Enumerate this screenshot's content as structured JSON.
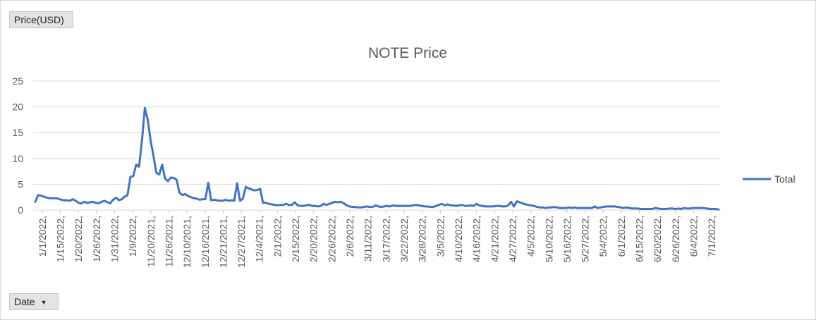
{
  "buttons": {
    "value_field": "Price(USD)",
    "axis_field": "Date",
    "axis_field_icon": "dropdown-arrow-icon"
  },
  "chart_data": {
    "type": "line",
    "title": "NOTE Price",
    "xlabel": "",
    "ylabel": "",
    "ylim": [
      0,
      25
    ],
    "yticks": [
      "0",
      "5",
      "10",
      "15",
      "20",
      "25"
    ],
    "grid": true,
    "legend_position": "right",
    "color": "#4472c4",
    "x_tick_labels": [
      "1/1/2022,",
      "1/15/2022,",
      "1/20/2022,",
      "1/26/2022,",
      "1/31/2022,",
      "1/9/2022,",
      "11/20/2021,",
      "11/26/2021,",
      "12/10/2021,",
      "12/16/2021,",
      "12/21/2021,",
      "12/27/2021,",
      "12/4/2021,",
      "2/1/2022,",
      "2/15/2022,",
      "2/20/2022,",
      "2/26/2022,",
      "2/6/2022,",
      "3/11/2022,",
      "3/17/2022,",
      "3/22/2022,",
      "3/28/2022,",
      "3/5/2022,",
      "4/10/2022,",
      "4/16/2022,",
      "4/21/2022,",
      "4/27/2022,",
      "4/5/2022,",
      "5/10/2022,",
      "5/16/2022,",
      "5/27/2022,",
      "5/4/2022,",
      "6/1/2022,",
      "6/15/2022,",
      "6/20/2022,",
      "6/26/2022,",
      "6/4/2022,",
      "7/1/2022,"
    ],
    "series": [
      {
        "name": "Total",
        "values": [
          1.6,
          2.9,
          2.8,
          2.6,
          2.4,
          2.3,
          2.3,
          2.3,
          2.2,
          2.0,
          1.9,
          1.9,
          1.8,
          2.1,
          1.8,
          1.4,
          1.3,
          1.6,
          1.4,
          1.5,
          1.6,
          1.4,
          1.3,
          1.6,
          1.8,
          1.5,
          1.3,
          2.0,
          2.4,
          1.9,
          2.1,
          2.6,
          2.9,
          6.4,
          6.6,
          8.8,
          8.4,
          13.5,
          19.8,
          17.5,
          13.5,
          10.5,
          7.2,
          6.9,
          8.8,
          6.1,
          5.6,
          6.3,
          6.2,
          5.9,
          3.4,
          2.9,
          3.1,
          2.7,
          2.5,
          2.3,
          2.2,
          2.0,
          2.1,
          2.1,
          5.3,
          1.9,
          2.0,
          1.9,
          1.8,
          1.8,
          2.0,
          1.8,
          1.9,
          1.8,
          5.2,
          1.8,
          2.2,
          4.5,
          4.2,
          4.0,
          3.8,
          3.9,
          4.1,
          1.4,
          1.4,
          1.2,
          1.1,
          1.0,
          0.9,
          1.0,
          1.0,
          1.2,
          1.0,
          1.0,
          1.5,
          0.9,
          0.8,
          0.8,
          0.9,
          1.0,
          0.8,
          0.8,
          0.7,
          0.8,
          1.2,
          1.0,
          1.2,
          1.4,
          1.6,
          1.5,
          1.6,
          1.3,
          0.9,
          0.7,
          0.6,
          0.6,
          0.5,
          0.5,
          0.6,
          0.7,
          0.6,
          0.6,
          0.9,
          0.7,
          0.6,
          0.7,
          0.8,
          0.7,
          0.9,
          0.8,
          0.8,
          0.8,
          0.8,
          0.8,
          0.8,
          0.9,
          1.0,
          0.9,
          0.8,
          0.7,
          0.7,
          0.6,
          0.6,
          0.8,
          1.0,
          1.2,
          0.9,
          1.1,
          0.9,
          0.9,
          0.8,
          0.9,
          1.0,
          0.8,
          0.8,
          0.9,
          0.8,
          1.2,
          0.9,
          0.8,
          0.7,
          0.7,
          0.7,
          0.7,
          0.8,
          0.8,
          0.7,
          0.7,
          0.9,
          1.6,
          0.7,
          1.7,
          1.5,
          1.3,
          1.1,
          1.0,
          0.9,
          0.8,
          0.6,
          0.5,
          0.5,
          0.4,
          0.5,
          0.5,
          0.6,
          0.5,
          0.4,
          0.4,
          0.4,
          0.5,
          0.4,
          0.5,
          0.4,
          0.4,
          0.4,
          0.4,
          0.4,
          0.4,
          0.7,
          0.4,
          0.5,
          0.6,
          0.7,
          0.7,
          0.7,
          0.7,
          0.6,
          0.5,
          0.4,
          0.5,
          0.4,
          0.3,
          0.3,
          0.3,
          0.2,
          0.2,
          0.2,
          0.2,
          0.2,
          0.4,
          0.3,
          0.2,
          0.2,
          0.2,
          0.3,
          0.3,
          0.2,
          0.3,
          0.2,
          0.4,
          0.3,
          0.3,
          0.4,
          0.4,
          0.4,
          0.4,
          0.4,
          0.3,
          0.2,
          0.2,
          0.2,
          0.1
        ]
      }
    ]
  }
}
